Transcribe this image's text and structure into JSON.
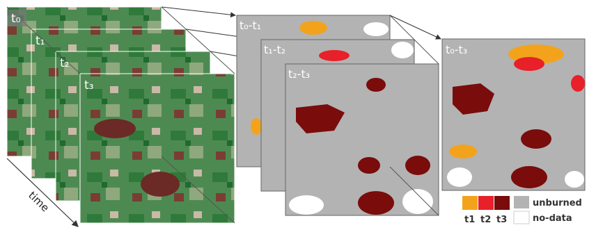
{
  "stack": {
    "labels": [
      "t₀",
      "t₁",
      "t₂",
      "t₃"
    ],
    "axis_label": "time"
  },
  "change_maps": {
    "labels": [
      "t₀-t₁",
      "t₁-t₂",
      "t₂-t₃"
    ]
  },
  "total_map": {
    "label": "t₀-t₃"
  },
  "legend": {
    "classes": [
      "t1",
      "t2",
      "t3"
    ],
    "unburned": "unburned",
    "no_data": "no-data"
  }
}
